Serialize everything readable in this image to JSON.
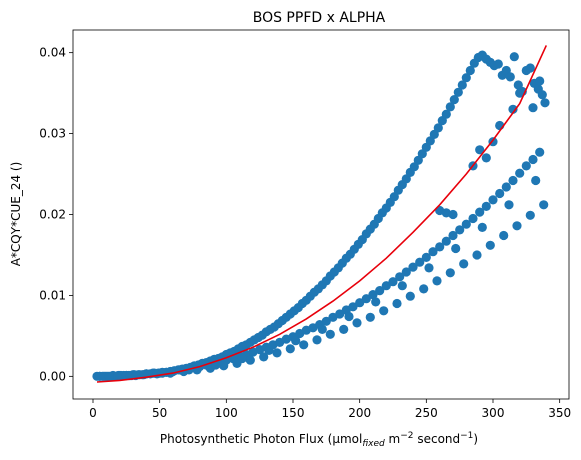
{
  "chart_data": {
    "type": "scatter",
    "title": "BOS PPFD x ALPHA",
    "xlabel": {
      "prefix": "Photosynthetic Photon Flux (µmol",
      "sub": "fixed",
      "mid1": " m",
      "sup1": "−2",
      "mid2": " second",
      "sup2": "−1",
      "suffix": ")"
    },
    "ylabel": "A*CQY*CUE_24 ()",
    "xlim": [
      -15,
      357
    ],
    "ylim": [
      -0.0028,
      0.0428
    ],
    "xticks": [
      0,
      50,
      100,
      150,
      200,
      250,
      300,
      350
    ],
    "yticks": [
      0.0,
      0.01,
      0.02,
      0.03,
      0.04
    ],
    "ytick_labels": [
      "0.00",
      "0.01",
      "0.02",
      "0.03",
      "0.04"
    ],
    "grid": false,
    "colors": {
      "points": "#1f77b4",
      "fit": "#e8000b"
    },
    "series": [
      {
        "type": "scatter",
        "x": [
          3,
          5,
          7,
          9,
          11,
          13,
          15,
          17,
          19,
          21,
          23,
          25,
          27,
          29,
          31,
          34,
          37,
          40,
          43,
          46,
          49,
          52,
          55,
          58,
          61,
          64,
          67,
          70,
          73,
          76,
          79,
          82,
          85,
          88,
          91,
          94,
          97,
          100,
          103,
          106,
          109,
          112,
          115,
          118,
          121,
          124,
          127,
          130,
          133,
          136,
          139,
          142,
          145,
          148,
          151,
          154,
          157,
          160,
          163,
          166,
          169,
          172,
          175,
          178,
          181,
          184,
          187,
          190,
          193,
          196,
          199,
          202,
          205,
          208,
          211,
          214,
          217,
          220,
          223,
          226,
          229,
          232,
          235,
          238,
          241,
          244,
          247,
          250,
          253,
          256,
          259,
          262,
          265,
          268,
          271,
          274,
          277,
          280,
          283,
          286,
          289,
          292,
          295,
          298,
          301,
          304,
          307,
          310,
          313,
          316,
          319,
          322,
          325,
          328,
          331,
          334,
          337,
          339,
          5,
          10,
          15,
          20,
          25,
          30,
          35,
          40,
          45,
          50,
          55,
          60,
          65,
          70,
          75,
          80,
          85,
          90,
          95,
          100,
          105,
          110,
          115,
          120,
          125,
          130,
          135,
          140,
          145,
          150,
          155,
          160,
          165,
          170,
          175,
          180,
          185,
          190,
          195,
          200,
          205,
          210,
          215,
          220,
          225,
          230,
          235,
          240,
          245,
          250,
          255,
          260,
          265,
          270,
          275,
          280,
          285,
          290,
          295,
          300,
          305,
          310,
          315,
          320,
          325,
          330,
          335,
          8,
          18,
          28,
          38,
          48,
          58,
          68,
          78,
          88,
          98,
          108,
          118,
          128,
          138,
          148,
          158,
          168,
          178,
          188,
          198,
          208,
          218,
          228,
          238,
          248,
          258,
          268,
          278,
          288,
          298,
          308,
          318,
          328,
          338,
          12,
          32,
          52,
          72,
          92,
          112,
          132,
          152,
          172,
          192,
          212,
          232,
          252,
          272,
          292,
          312,
          332,
          260,
          265,
          270,
          285,
          290,
          295,
          300,
          305,
          315,
          320,
          330,
          335
        ],
        "y": [
          0.0,
          0.0,
          0.0,
          0.0,
          0.0,
          0.0,
          0.0,
          0.0,
          0.0001,
          0.0001,
          0.0001,
          0.0001,
          0.0001,
          0.0001,
          0.0002,
          0.0002,
          0.0002,
          0.0003,
          0.0003,
          0.0004,
          0.0004,
          0.0005,
          0.0005,
          0.0006,
          0.0007,
          0.0008,
          0.0009,
          0.001,
          0.0011,
          0.0013,
          0.0014,
          0.0016,
          0.0017,
          0.0019,
          0.0021,
          0.0022,
          0.0024,
          0.0027,
          0.0029,
          0.0031,
          0.0034,
          0.0037,
          0.0039,
          0.0042,
          0.0045,
          0.0048,
          0.0051,
          0.0055,
          0.0058,
          0.0061,
          0.0065,
          0.0069,
          0.0073,
          0.0077,
          0.0081,
          0.0085,
          0.009,
          0.0094,
          0.0099,
          0.0104,
          0.0108,
          0.0113,
          0.0118,
          0.0124,
          0.0129,
          0.0134,
          0.014,
          0.0146,
          0.0151,
          0.0157,
          0.0163,
          0.0169,
          0.0176,
          0.0182,
          0.0188,
          0.0195,
          0.0202,
          0.0208,
          0.0215,
          0.0222,
          0.023,
          0.0237,
          0.0244,
          0.0252,
          0.0259,
          0.0267,
          0.0275,
          0.0283,
          0.0291,
          0.0299,
          0.0307,
          0.0316,
          0.0324,
          0.0333,
          0.0342,
          0.0351,
          0.036,
          0.0369,
          0.0378,
          0.0387,
          0.0394,
          0.0397,
          0.0392,
          0.0388,
          0.0384,
          0.0386,
          0.0372,
          0.0378,
          0.037,
          0.0395,
          0.036,
          0.0352,
          0.0378,
          0.0381,
          0.0362,
          0.0355,
          0.0348,
          0.0338,
          0.0,
          0.0,
          0.0001,
          0.0001,
          0.0001,
          0.0002,
          0.0002,
          0.0003,
          0.0004,
          0.0004,
          0.0005,
          0.0006,
          0.0008,
          0.0009,
          0.0011,
          0.0012,
          0.0014,
          0.0016,
          0.0018,
          0.002,
          0.0022,
          0.0025,
          0.0027,
          0.003,
          0.0033,
          0.0036,
          0.0039,
          0.0042,
          0.0046,
          0.0049,
          0.0053,
          0.0057,
          0.006,
          0.0064,
          0.0068,
          0.0073,
          0.0077,
          0.0082,
          0.0086,
          0.0091,
          0.0096,
          0.0101,
          0.0106,
          0.0112,
          0.0117,
          0.0123,
          0.0129,
          0.0135,
          0.0141,
          0.0147,
          0.0154,
          0.016,
          0.0167,
          0.0174,
          0.0181,
          0.0188,
          0.0195,
          0.0203,
          0.021,
          0.0218,
          0.0226,
          0.0234,
          0.0242,
          0.0251,
          0.026,
          0.0268,
          0.0277,
          0.0,
          0.0,
          0.0001,
          0.0002,
          0.0003,
          0.0004,
          0.0006,
          0.0008,
          0.001,
          0.0013,
          0.0016,
          0.002,
          0.0024,
          0.0029,
          0.0034,
          0.0039,
          0.0045,
          0.0052,
          0.0058,
          0.0066,
          0.0073,
          0.0081,
          0.009,
          0.0099,
          0.0108,
          0.0118,
          0.0128,
          0.0139,
          0.015,
          0.0162,
          0.0174,
          0.0186,
          0.0199,
          0.0212,
          0.0,
          0.0001,
          0.0004,
          0.0008,
          0.0014,
          0.0022,
          0.0032,
          0.0044,
          0.0058,
          0.0074,
          0.0092,
          0.0112,
          0.0134,
          0.0158,
          0.0184,
          0.0212,
          0.0242,
          0.0205,
          0.0202,
          0.02,
          0.026,
          0.028,
          0.027,
          0.029,
          0.031,
          0.033,
          0.035,
          0.0332,
          0.0365
        ]
      },
      {
        "type": "line",
        "x": [
          3,
          20,
          40,
          60,
          80,
          100,
          120,
          140,
          160,
          180,
          200,
          220,
          240,
          260,
          280,
          300,
          320,
          340
        ],
        "y": [
          -0.0007,
          -0.0005,
          -0.0001,
          0.0004,
          0.0012,
          0.0023,
          0.0036,
          0.0052,
          0.0071,
          0.0093,
          0.0118,
          0.0146,
          0.0178,
          0.0212,
          0.025,
          0.0292,
          0.0337,
          0.0409
        ]
      }
    ]
  }
}
